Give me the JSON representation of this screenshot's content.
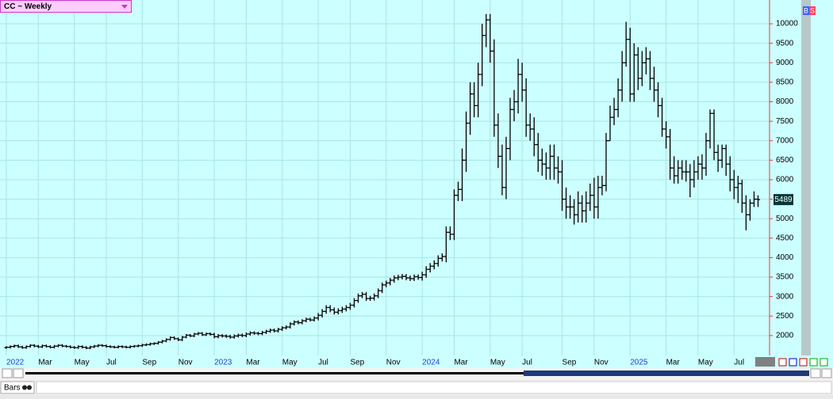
{
  "chart_data": {
    "type": "ohlc",
    "title": "CC ~ Weekly",
    "color": "#000000",
    "grid": true,
    "ylim": [
      1490,
      10610
    ],
    "yticks": [
      2000,
      2500,
      3000,
      3500,
      4000,
      4500,
      5000,
      5500,
      6000,
      6500,
      7000,
      7500,
      8000,
      8500,
      9000,
      9500,
      10000
    ],
    "categories": [
      "2022",
      null,
      null,
      null,
      null,
      null,
      null,
      null,
      "Mar",
      null,
      null,
      null,
      null,
      null,
      null,
      null,
      null,
      "May",
      null,
      null,
      null,
      null,
      null,
      null,
      null,
      "Jul",
      null,
      null,
      null,
      null,
      null,
      null,
      null,
      null,
      "Sep",
      null,
      null,
      null,
      null,
      null,
      null,
      null,
      null,
      "Nov",
      null,
      null,
      null,
      null,
      null,
      null,
      null,
      null,
      "2023",
      null,
      null,
      null,
      null,
      null,
      null,
      null,
      "Mar",
      null,
      null,
      null,
      null,
      null,
      null,
      null,
      null,
      "May",
      null,
      null,
      null,
      null,
      null,
      null,
      null,
      null,
      "Jul",
      null,
      null,
      null,
      null,
      null,
      null,
      null,
      "Sep",
      null,
      null,
      null,
      null,
      null,
      null,
      null,
      null,
      "Nov",
      null,
      null,
      null,
      null,
      null,
      null,
      null,
      null,
      "2024",
      null,
      null,
      null,
      null,
      null,
      null,
      null,
      "Mar",
      null,
      null,
      null,
      null,
      null,
      null,
      null,
      null,
      "May",
      null,
      null,
      null,
      null,
      null,
      null,
      null,
      "Jul",
      null,
      null,
      null,
      null,
      null,
      null,
      null,
      null,
      null,
      "Sep",
      null,
      null,
      null,
      null,
      null,
      null,
      null,
      "Nov",
      null,
      null,
      null,
      null,
      null,
      null,
      null,
      null,
      "2025",
      null,
      null,
      null,
      null,
      null,
      null,
      null,
      null,
      "Mar",
      null,
      null,
      null,
      null,
      null,
      null,
      null,
      "May",
      null,
      null,
      null,
      null,
      null,
      null,
      null,
      null,
      "Jul",
      null,
      null,
      null,
      null,
      null,
      null
    ],
    "open": [
      1690,
      1700,
      1720,
      1740,
      1710,
      1690,
      1720,
      1750,
      1730,
      1710,
      1740,
      1720,
      1700,
      1730,
      1750,
      1730,
      1720,
      1700,
      1690,
      1720,
      1700,
      1680,
      1710,
      1730,
      1750,
      1740,
      1720,
      1710,
      1700,
      1720,
      1710,
      1700,
      1720,
      1730,
      1740,
      1760,
      1770,
      1790,
      1800,
      1830,
      1860,
      1900,
      1950,
      1920,
      1890,
      1960,
      2010,
      1990,
      2040,
      2060,
      2020,
      2050,
      2030,
      1970,
      2000,
      1990,
      1980,
      1960,
      1990,
      2010,
      2000,
      2040,
      2070,
      2060,
      2050,
      2080,
      2110,
      2140,
      2120,
      2160,
      2200,
      2220,
      2300,
      2350,
      2330,
      2380,
      2420,
      2400,
      2450,
      2520,
      2620,
      2720,
      2660,
      2600,
      2640,
      2680,
      2720,
      2780,
      2900,
      3020,
      3060,
      2950,
      2960,
      3020,
      3150,
      3300,
      3350,
      3420,
      3480,
      3500,
      3520,
      3480,
      3460,
      3510,
      3490,
      3560,
      3700,
      3780,
      3850,
      3980,
      4030,
      4650,
      4600,
      5600,
      5750,
      6500,
      7450,
      8200,
      7900,
      8700,
      9700,
      10100,
      9300,
      7400,
      6600,
      5800,
      6800,
      7800,
      8000,
      8700,
      8300,
      7400,
      7300,
      6900,
      6500,
      6400,
      6300,
      6600,
      6300,
      6200,
      5500,
      5300,
      5300,
      5100,
      5400,
      5200,
      5400,
      5600,
      5300,
      5800,
      5850,
      7000,
      7600,
      7800,
      8300,
      9000,
      9600,
      8200,
      9200,
      8600,
      9000,
      9100,
      8600,
      8300,
      7900,
      7300,
      7100,
      6300,
      6100,
      6300,
      6200,
      6200,
      6000,
      6200,
      6400,
      6300,
      7000,
      7700,
      6700,
      6500,
      6800,
      6400,
      6000,
      5800,
      5900,
      5400,
      5100,
      5400,
      5500
    ],
    "high": [
      1730,
      1750,
      1770,
      1770,
      1740,
      1750,
      1780,
      1780,
      1760,
      1770,
      1770,
      1750,
      1760,
      1780,
      1780,
      1760,
      1750,
      1730,
      1750,
      1750,
      1730,
      1740,
      1760,
      1780,
      1780,
      1770,
      1750,
      1740,
      1750,
      1750,
      1740,
      1750,
      1760,
      1770,
      1790,
      1800,
      1820,
      1830,
      1860,
      1890,
      1930,
      1980,
      1980,
      1950,
      1990,
      2040,
      2040,
      2070,
      2090,
      2090,
      2080,
      2080,
      2070,
      2040,
      2040,
      2030,
      2020,
      2030,
      2050,
      2050,
      2080,
      2110,
      2110,
      2100,
      2120,
      2150,
      2180,
      2180,
      2200,
      2240,
      2260,
      2340,
      2390,
      2390,
      2420,
      2460,
      2460,
      2490,
      2580,
      2680,
      2780,
      2780,
      2720,
      2700,
      2740,
      2780,
      2840,
      2960,
      3080,
      3120,
      3120,
      3020,
      3080,
      3210,
      3360,
      3410,
      3480,
      3540,
      3560,
      3580,
      3580,
      3540,
      3570,
      3570,
      3640,
      3780,
      3860,
      3930,
      4060,
      4110,
      4800,
      4800,
      5750,
      5950,
      6800,
      7750,
      8500,
      8500,
      9000,
      10000,
      10250,
      10250,
      9600,
      7700,
      6900,
      7100,
      8100,
      8300,
      9100,
      9000,
      8600,
      7700,
      7600,
      7200,
      6800,
      6700,
      6900,
      6900,
      6600,
      6500,
      5800,
      5600,
      5500,
      5700,
      5600,
      5700,
      5900,
      6050,
      6100,
      6100,
      7200,
      7900,
      8100,
      8600,
      9300,
      10050,
      9900,
      9500,
      9400,
      9300,
      9400,
      9300,
      8900,
      8500,
      8100,
      7500,
      7300,
      6600,
      6500,
      6500,
      6500,
      6400,
      6500,
      6600,
      6650,
      7200,
      7800,
      7800,
      6900,
      6900,
      6900,
      6600,
      6250,
      6100,
      6000,
      5600,
      5500,
      5700,
      5600
    ],
    "low": [
      1660,
      1670,
      1690,
      1680,
      1660,
      1660,
      1690,
      1700,
      1680,
      1680,
      1690,
      1670,
      1670,
      1700,
      1700,
      1690,
      1670,
      1660,
      1660,
      1670,
      1650,
      1650,
      1680,
      1700,
      1710,
      1690,
      1680,
      1670,
      1670,
      1680,
      1670,
      1670,
      1690,
      1700,
      1710,
      1730,
      1740,
      1760,
      1770,
      1800,
      1830,
      1870,
      1890,
      1860,
      1860,
      1930,
      1960,
      1960,
      2010,
      1990,
      1990,
      2000,
      1930,
      1930,
      1950,
      1940,
      1920,
      1920,
      1950,
      1960,
      1960,
      2000,
      2020,
      2010,
      2010,
      2040,
      2070,
      2080,
      2080,
      2120,
      2160,
      2180,
      2260,
      2290,
      2290,
      2340,
      2360,
      2360,
      2390,
      2460,
      2560,
      2600,
      2540,
      2540,
      2580,
      2620,
      2660,
      2720,
      2840,
      2960,
      2890,
      2890,
      2900,
      2960,
      3090,
      3240,
      3290,
      3360,
      3420,
      3440,
      3420,
      3400,
      3400,
      3430,
      3410,
      3480,
      3620,
      3700,
      3770,
      3900,
      3880,
      4450,
      4450,
      5450,
      5450,
      6200,
      7150,
      7600,
      7600,
      8400,
      9400,
      9000,
      7100,
      6300,
      5600,
      5500,
      6500,
      7500,
      7700,
      8000,
      7100,
      7000,
      6600,
      6200,
      6100,
      6000,
      6000,
      6000,
      5900,
      5200,
      5000,
      5000,
      4850,
      4900,
      4900,
      4900,
      5200,
      5000,
      5000,
      5600,
      5700,
      7000,
      7400,
      7600,
      8000,
      8900,
      8000,
      8000,
      8300,
      8400,
      8700,
      8300,
      8000,
      7600,
      7100,
      6800,
      6000,
      5900,
      5900,
      6000,
      5950,
      5550,
      5800,
      6000,
      6000,
      6100,
      6800,
      6500,
      6200,
      6300,
      6100,
      5700,
      5500,
      5400,
      5150,
      4700,
      4950,
      5300,
      5300
    ],
    "close": [
      1700,
      1720,
      1740,
      1710,
      1690,
      1720,
      1750,
      1730,
      1710,
      1740,
      1720,
      1700,
      1730,
      1750,
      1730,
      1720,
      1700,
      1690,
      1720,
      1700,
      1680,
      1710,
      1730,
      1750,
      1740,
      1720,
      1710,
      1700,
      1720,
      1710,
      1700,
      1720,
      1730,
      1740,
      1760,
      1770,
      1790,
      1800,
      1830,
      1860,
      1900,
      1950,
      1920,
      1890,
      1960,
      2010,
      1990,
      2040,
      2060,
      2020,
      2050,
      2030,
      1970,
      2000,
      1990,
      1980,
      1960,
      1990,
      2010,
      2000,
      2040,
      2070,
      2060,
      2050,
      2080,
      2110,
      2140,
      2120,
      2160,
      2200,
      2220,
      2300,
      2350,
      2330,
      2380,
      2420,
      2400,
      2450,
      2520,
      2620,
      2720,
      2660,
      2600,
      2640,
      2680,
      2720,
      2780,
      2900,
      3020,
      3060,
      2950,
      2960,
      3020,
      3150,
      3300,
      3350,
      3420,
      3480,
      3500,
      3520,
      3480,
      3460,
      3510,
      3490,
      3560,
      3700,
      3780,
      3850,
      3980,
      4030,
      4650,
      4600,
      5600,
      5750,
      6500,
      7450,
      8200,
      7900,
      8700,
      9700,
      10100,
      9300,
      7400,
      6600,
      5800,
      6800,
      7800,
      8000,
      8700,
      8300,
      7400,
      7300,
      6900,
      6500,
      6400,
      6300,
      6600,
      6300,
      6200,
      5500,
      5300,
      5300,
      5100,
      5400,
      5200,
      5400,
      5600,
      5300,
      5800,
      5850,
      7000,
      7600,
      7800,
      8300,
      9000,
      9600,
      8200,
      9200,
      8600,
      9000,
      9100,
      8600,
      8300,
      7900,
      7300,
      7100,
      6300,
      6100,
      6300,
      6200,
      6200,
      6000,
      6200,
      6400,
      6300,
      7000,
      7700,
      6700,
      6500,
      6800,
      6400,
      6000,
      5800,
      5900,
      5400,
      5100,
      5400,
      5500,
      5489
    ]
  },
  "ui": {
    "buy": "B",
    "sell": "S",
    "chart_style": "Bars"
  }
}
